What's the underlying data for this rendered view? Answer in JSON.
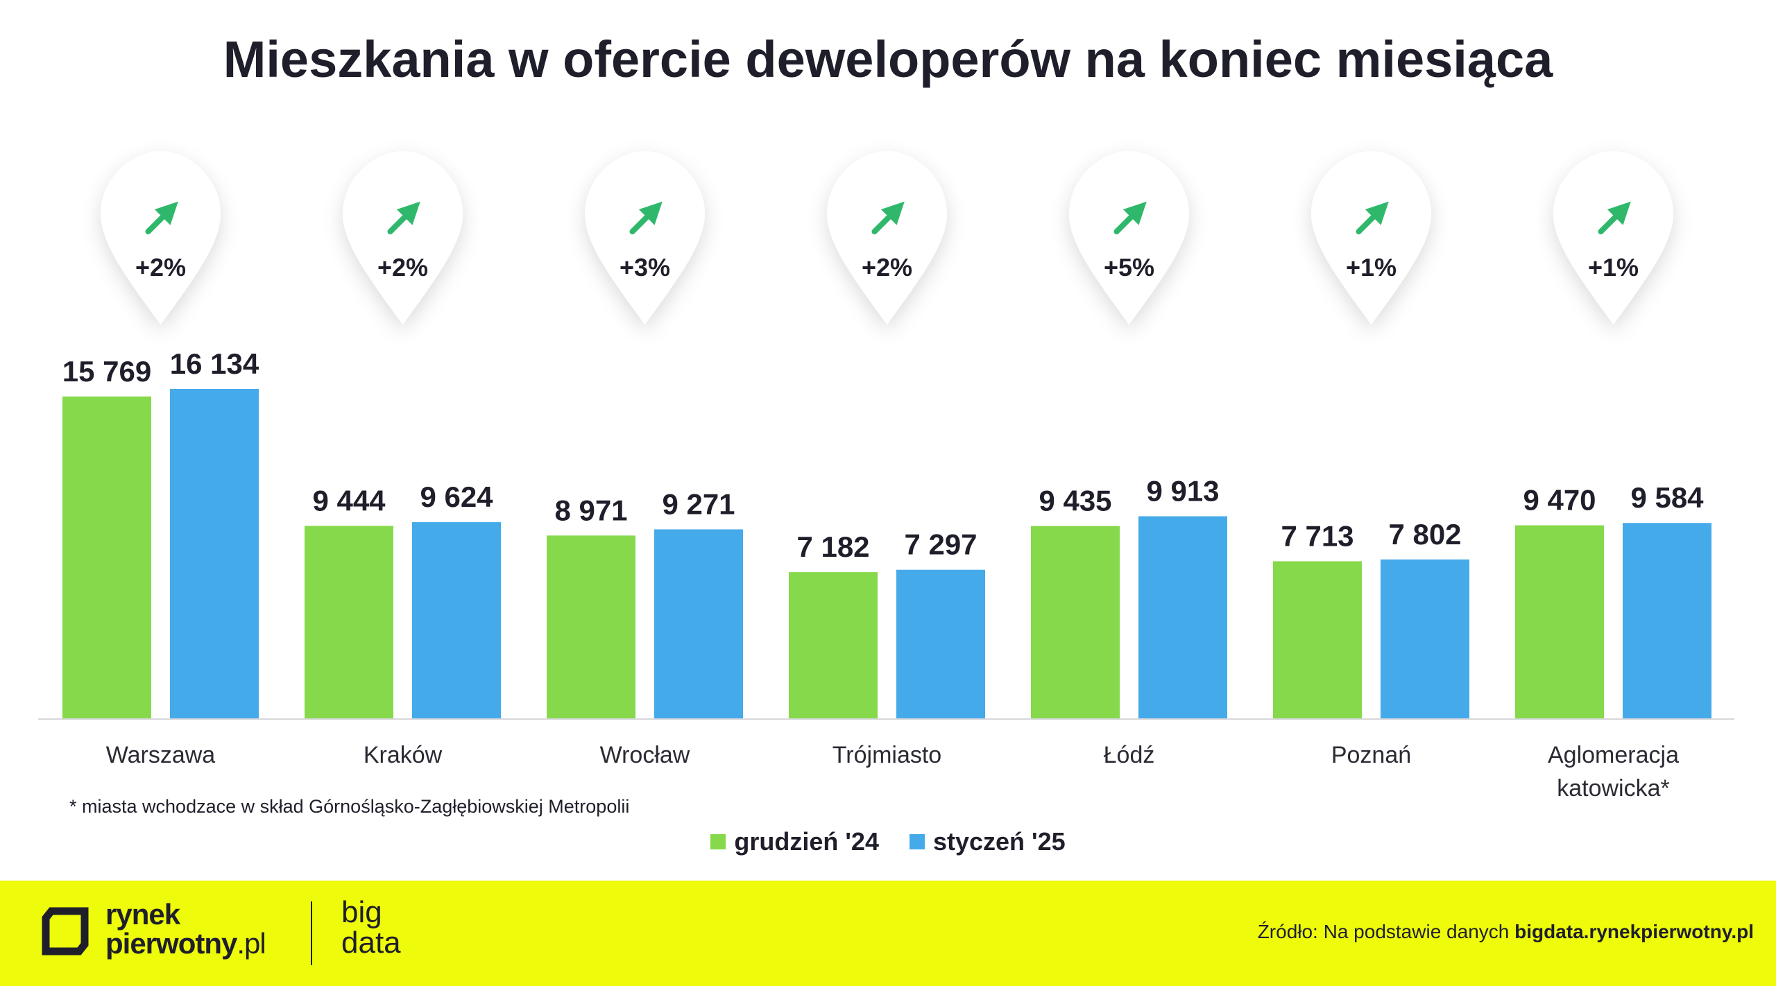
{
  "title": "Mieszkania w ofercie deweloperów na koniec miesiąca",
  "chart_data": {
    "type": "bar",
    "title": "Mieszkania w ofercie deweloperów na koniec miesiąca",
    "categories": [
      "Warszawa",
      "Kraków",
      "Wrocław",
      "Trójmiasto",
      "Łódź",
      "Poznań",
      "Aglomeracja katowicka*"
    ],
    "series": [
      {
        "name": "grudzień '24",
        "color": "#86d94b",
        "values": [
          15769,
          9444,
          8971,
          7182,
          9435,
          7713,
          9470
        ],
        "labels": [
          "15 769",
          "9 444",
          "8 971",
          "7 182",
          "9 435",
          "7 713",
          "9 470"
        ]
      },
      {
        "name": "styczeń '25",
        "color": "#45aaea",
        "values": [
          16134,
          9624,
          9271,
          7297,
          9913,
          7802,
          9584
        ],
        "labels": [
          "16 134",
          "9 624",
          "9 271",
          "7 297",
          "9 913",
          "7 802",
          "9 584"
        ]
      }
    ],
    "changes": [
      "+2%",
      "+2%",
      "+3%",
      "+2%",
      "+5%",
      "+1%",
      "+1%"
    ],
    "change_arrow_color": "#2fb86b",
    "change_icon": "arrow-up-right-icon",
    "ylim": [
      0,
      16134
    ],
    "grid": false,
    "legend": "bottom-center"
  },
  "note": "* miasta wchodzace w skład Górnośląsko-Zagłębiowskiej Metropolii",
  "footer": {
    "logo_line1": "rynek",
    "logo_line2_bold": "pierwotny",
    "logo_line2_light": ".pl",
    "bigdata_line1": "big",
    "bigdata_line2": "data",
    "source_prefix": "Źródło: Na podstawie danych ",
    "source_bold": "bigdata.rynekpierwotny.pl",
    "background": "#eefb0b"
  }
}
